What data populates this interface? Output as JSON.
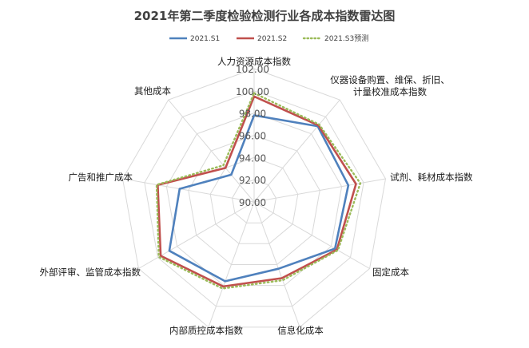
{
  "chart_data": {
    "type": "radar",
    "title": "2021年第二季度检验检测行业各成本指数雷达图",
    "categories": [
      "人力资源成本指数",
      "仪器设备购置、维保、折旧、计量校准成本指数",
      "试剂、耗材成本指数",
      "固定成本",
      "信息化成本",
      "内部质控成本指数",
      "外部评审、监管成本指数",
      "广告和推广成本",
      "其他成本"
    ],
    "axis": {
      "min": 90,
      "max": 102,
      "step": 2,
      "ticks": [
        "90.00",
        "92.00",
        "94.00",
        "96.00",
        "98.00",
        "100.00",
        "102.00"
      ]
    },
    "series": [
      {
        "name": "2021.S1",
        "color": "#4F81BD",
        "style": "solid",
        "values": [
          97.8,
          98.9,
          98.6,
          98.4,
          96.4,
          97.6,
          98.8,
          96.8,
          93.2
        ]
      },
      {
        "name": "2021.S2",
        "color": "#C0504D",
        "style": "solid",
        "values": [
          99.5,
          99.0,
          99.3,
          98.6,
          97.3,
          98.1,
          99.7,
          98.8,
          94.0
        ]
      },
      {
        "name": "2021.S3预测",
        "color": "#9BBB59",
        "style": "dotted",
        "values": [
          99.8,
          99.1,
          99.7,
          98.7,
          97.5,
          98.3,
          99.9,
          98.9,
          94.3
        ]
      }
    ],
    "legend_position": "top",
    "grid": true,
    "grid_color": "#D9D9D9"
  }
}
